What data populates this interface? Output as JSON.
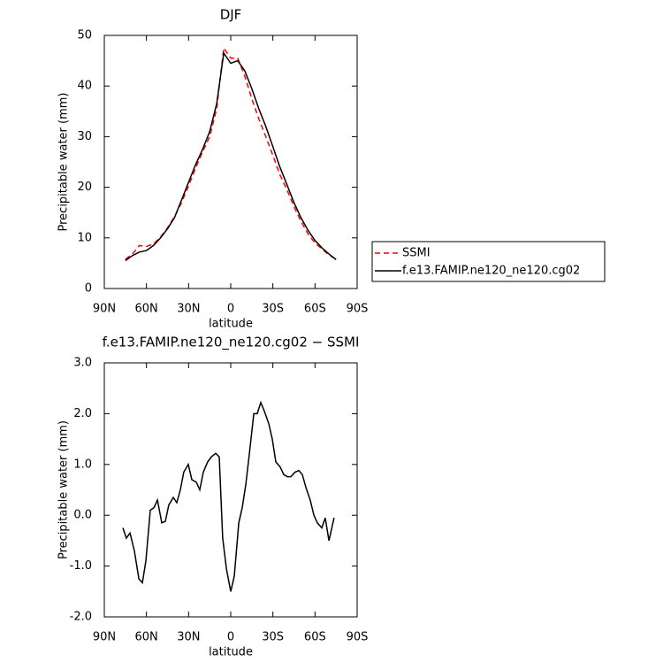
{
  "chart_data": [
    {
      "type": "line",
      "title": "DJF",
      "xlabel": "latitude",
      "ylabel": "Precipitable water (mm)",
      "x": [
        75,
        70,
        65,
        60,
        55,
        50,
        45,
        40,
        35,
        30,
        25,
        20,
        15,
        10,
        5,
        0,
        -5,
        -10,
        -15,
        -20,
        -25,
        -30,
        -35,
        -40,
        -45,
        -50,
        -55,
        -60,
        -65,
        -70,
        -75
      ],
      "series": [
        {
          "name": "SSMI",
          "color": "#ff0000",
          "dash": true,
          "values": [
            5.8,
            6.8,
            8.5,
            8.3,
            8.8,
            10.2,
            12,
            14.2,
            17,
            20.3,
            23.8,
            27,
            30,
            35.5,
            47.5,
            45.5,
            45.5,
            42,
            37.5,
            33.5,
            30,
            26.3,
            22.5,
            19.5,
            16.2,
            13.3,
            10.8,
            9,
            7.8,
            6.6,
            5.8
          ]
        },
        {
          "name": "f.e13.FAMIP.ne120_ne120.cg02",
          "color": "#000000",
          "dash": false,
          "values": [
            5.5,
            6.5,
            7.2,
            7.5,
            8.5,
            10,
            11.8,
            14,
            17.5,
            21,
            24.5,
            27.5,
            31,
            36.5,
            46.5,
            44.5,
            45,
            43,
            39.5,
            35.5,
            32,
            28,
            24,
            20.5,
            17,
            14,
            11.5,
            9.5,
            8,
            6.8,
            5.7
          ]
        }
      ],
      "xlim": [
        90,
        -90
      ],
      "xticks": [
        {
          "value": 90,
          "label": "90N"
        },
        {
          "value": 60,
          "label": "60N"
        },
        {
          "value": 30,
          "label": "30N"
        },
        0,
        {
          "value": -30,
          "label": "30S"
        },
        {
          "value": -60,
          "label": "60S"
        },
        {
          "value": -90,
          "label": "90S"
        }
      ],
      "ylim": [
        0,
        50
      ],
      "yticks": [
        0,
        10,
        20,
        30,
        40,
        50
      ],
      "legend": "right"
    },
    {
      "type": "line",
      "title": "f.e13.FAMIP.ne120_ne120.cg02 − SSMI",
      "xlabel": "latitude",
      "ylabel": "Precipitable water (mm)",
      "x": [
        76.8,
        74.3,
        71.7,
        68.6,
        65.4,
        62.9,
        60.4,
        57.3,
        54.7,
        52.2,
        49.1,
        46.6,
        44.1,
        40.9,
        38.4,
        35.9,
        33.4,
        30.2,
        27.7,
        24.5,
        22.0,
        19.5,
        16.4,
        13.8,
        10.7,
        8.2,
        5.7,
        3.1,
        0,
        -2.5,
        -5.7,
        -8.2,
        -10.7,
        -13.2,
        -16.4,
        -18.9,
        -21.4,
        -23.9,
        -27.1,
        -29.6,
        -32.1,
        -35.2,
        -37.8,
        -40.3,
        -42.8,
        -45.9,
        -48.5,
        -51.0,
        -53.5,
        -56.6,
        -59.2,
        -61.7,
        -64.8,
        -67.3,
        -69.9,
        -73.6
      ],
      "values": [
        -0.25,
        -0.45,
        -0.35,
        -0.7,
        -1.25,
        -1.33,
        -0.9,
        0.1,
        0.15,
        0.3,
        -0.15,
        -0.12,
        0.2,
        0.35,
        0.25,
        0.5,
        0.85,
        1.0,
        0.7,
        0.65,
        0.5,
        0.85,
        1.05,
        1.15,
        1.22,
        1.15,
        -0.45,
        -1.05,
        -1.5,
        -1.2,
        -0.15,
        0.15,
        0.6,
        1.2,
        2.0,
        2.0,
        2.22,
        2.05,
        1.8,
        1.5,
        1.05,
        0.95,
        0.8,
        0.76,
        0.76,
        0.85,
        0.88,
        0.8,
        0.55,
        0.3,
        0.0,
        -0.15,
        -0.25,
        -0.05,
        -0.5,
        -0.05
      ],
      "color": "#000000",
      "xlim": [
        90,
        -90
      ],
      "xticks": [
        {
          "value": 90,
          "label": "90N"
        },
        {
          "value": 60,
          "label": "60N"
        },
        {
          "value": 30,
          "label": "30N"
        },
        0,
        {
          "value": -30,
          "label": "30S"
        },
        {
          "value": -60,
          "label": "60S"
        },
        {
          "value": -90,
          "label": "90S"
        }
      ],
      "ylim": [
        -2,
        3
      ],
      "yticks": [
        {
          "value": -2,
          "label": "-2.0"
        },
        {
          "value": -1,
          "label": "-1.0"
        },
        {
          "value": 0,
          "label": "0.0"
        },
        {
          "value": 1,
          "label": "1.0"
        },
        {
          "value": 2,
          "label": "2.0"
        },
        {
          "value": 3,
          "label": "3.0"
        }
      ]
    }
  ]
}
